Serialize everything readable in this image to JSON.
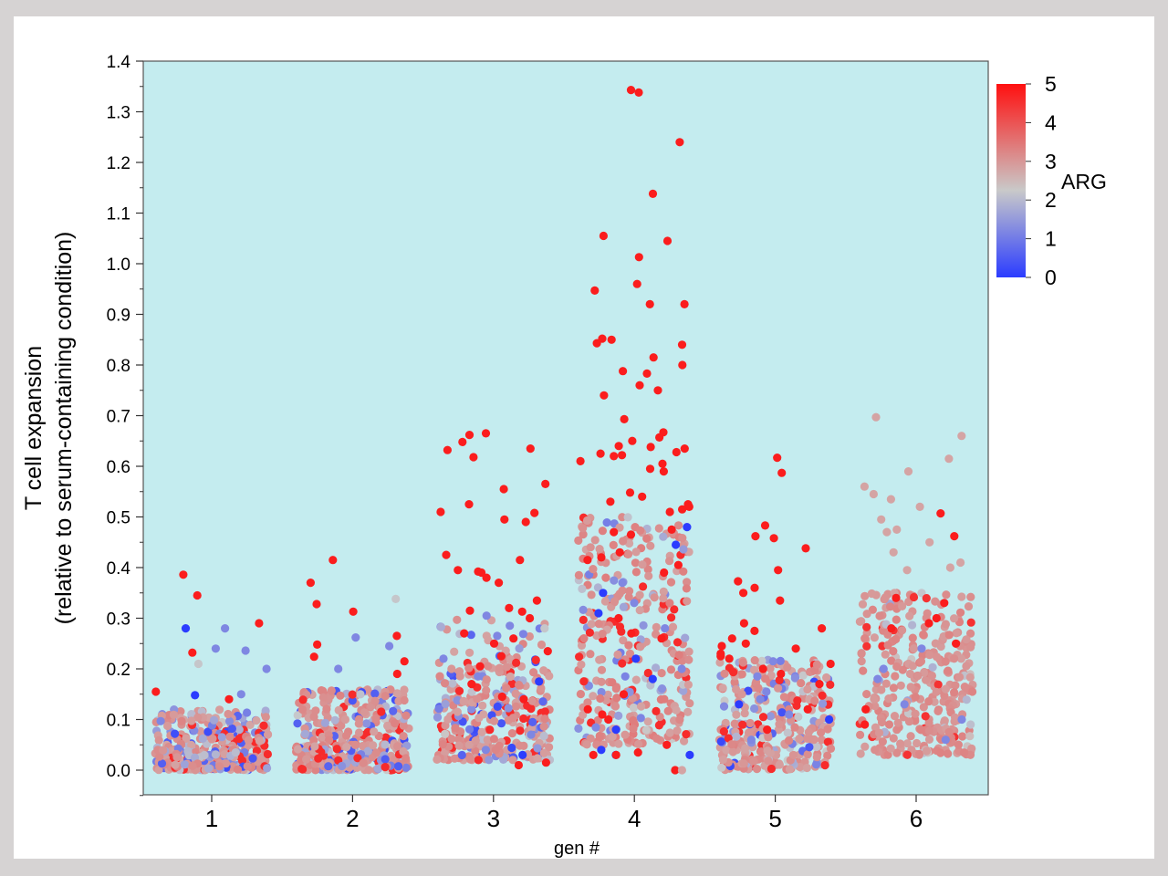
{
  "chart_data": {
    "type": "scatter",
    "title": "",
    "xlabel": "gen #",
    "ylabel_line1": "T cell expansion",
    "ylabel_line2": "(relative to serum-containing condition)",
    "categories": [
      "1",
      "2",
      "3",
      "4",
      "5",
      "6"
    ],
    "ylim": [
      -0.05,
      1.4
    ],
    "yticks": [
      "0.0",
      "0.1",
      "0.2",
      "0.3",
      "0.4",
      "0.5",
      "0.6",
      "0.7",
      "0.8",
      "0.9",
      "1.0",
      "1.1",
      "1.2",
      "1.3",
      "1.4"
    ],
    "jitter": "horizontal jitter within each generation category",
    "plot_background": "#c4ecef",
    "grid": false,
    "legend": "colorbar, right",
    "colorbar": {
      "label": "ARG",
      "min": 0,
      "max": 5,
      "ticks": [
        "0",
        "1",
        "2",
        "3",
        "4",
        "5"
      ],
      "colors": {
        "low": "#2b3cff",
        "mid": "#c9c9c9",
        "high": "#ff1010"
      }
    },
    "groups": [
      {
        "gen": 1,
        "notable_points": [
          [
            0.386,
            4
          ],
          [
            0.345,
            4
          ],
          [
            0.29,
            4
          ],
          [
            0.28,
            0
          ],
          [
            0.28,
            1
          ],
          [
            0.24,
            1
          ],
          [
            0.232,
            4
          ],
          [
            0.236,
            1
          ],
          [
            0.21,
            2
          ],
          [
            0.2,
            1
          ],
          [
            0.155,
            4
          ],
          [
            0.15,
            1
          ],
          [
            0.148,
            0
          ],
          [
            0.14,
            4
          ]
        ],
        "cluster": [
          {
            "y_min": 0.0,
            "y_max": 0.12,
            "count": 260
          },
          {
            "y_min": 0.0,
            "y_max": 0.04,
            "count": 120
          }
        ]
      },
      {
        "gen": 2,
        "notable_points": [
          [
            0.415,
            4
          ],
          [
            0.37,
            4
          ],
          [
            0.338,
            2
          ],
          [
            0.328,
            4
          ],
          [
            0.313,
            4
          ],
          [
            0.265,
            4
          ],
          [
            0.262,
            1
          ],
          [
            0.248,
            4
          ],
          [
            0.245,
            1
          ],
          [
            0.224,
            4
          ],
          [
            0.215,
            4
          ],
          [
            0.2,
            1
          ],
          [
            0.19,
            4
          ]
        ],
        "cluster": [
          {
            "y_min": 0.0,
            "y_max": 0.16,
            "count": 300
          },
          {
            "y_min": 0.0,
            "y_max": 0.05,
            "count": 120
          }
        ]
      },
      {
        "gen": 3,
        "notable_points": [
          [
            0.665,
            4
          ],
          [
            0.662,
            4
          ],
          [
            0.648,
            4
          ],
          [
            0.635,
            4
          ],
          [
            0.632,
            4
          ],
          [
            0.618,
            4
          ],
          [
            0.565,
            4
          ],
          [
            0.555,
            4
          ],
          [
            0.525,
            4
          ],
          [
            0.51,
            4
          ],
          [
            0.508,
            4
          ],
          [
            0.495,
            4
          ],
          [
            0.49,
            4
          ],
          [
            0.425,
            4
          ],
          [
            0.415,
            4
          ],
          [
            0.395,
            4
          ],
          [
            0.392,
            4
          ],
          [
            0.39,
            4
          ],
          [
            0.38,
            4
          ],
          [
            0.37,
            4
          ],
          [
            0.335,
            4
          ],
          [
            0.32,
            4
          ],
          [
            0.315,
            4
          ],
          [
            0.313,
            4
          ],
          [
            0.305,
            1
          ],
          [
            0.3,
            4
          ],
          [
            0.285,
            1
          ],
          [
            0.28,
            2
          ],
          [
            0.27,
            4
          ],
          [
            0.265,
            1
          ],
          [
            0.26,
            4
          ],
          [
            0.25,
            4
          ],
          [
            0.235,
            4
          ],
          [
            0.225,
            4
          ],
          [
            0.22,
            1
          ],
          [
            0.205,
            4
          ],
          [
            0.185,
            1
          ],
          [
            0.175,
            0
          ],
          [
            0.17,
            4
          ],
          [
            0.145,
            4
          ],
          [
            0.14,
            4
          ],
          [
            0.07,
            1
          ],
          [
            0.04,
            1
          ],
          [
            0.03,
            0
          ],
          [
            0.015,
            4
          ],
          [
            0.01,
            4
          ]
        ],
        "cluster": [
          {
            "y_min": 0.02,
            "y_max": 0.2,
            "count": 300
          },
          {
            "y_min": 0.2,
            "y_max": 0.3,
            "count": 40
          }
        ]
      },
      {
        "gen": 4,
        "notable_points": [
          [
            1.343,
            4
          ],
          [
            1.338,
            4
          ],
          [
            1.24,
            4
          ],
          [
            1.138,
            4
          ],
          [
            1.055,
            4
          ],
          [
            1.045,
            4
          ],
          [
            1.013,
            4
          ],
          [
            0.96,
            4
          ],
          [
            0.947,
            4
          ],
          [
            0.92,
            4
          ],
          [
            0.92,
            4
          ],
          [
            0.852,
            4
          ],
          [
            0.85,
            4
          ],
          [
            0.843,
            4
          ],
          [
            0.84,
            4
          ],
          [
            0.815,
            4
          ],
          [
            0.8,
            4
          ],
          [
            0.788,
            4
          ],
          [
            0.783,
            4
          ],
          [
            0.76,
            4
          ],
          [
            0.75,
            4
          ],
          [
            0.74,
            4
          ],
          [
            0.693,
            4
          ],
          [
            0.667,
            4
          ],
          [
            0.657,
            4
          ],
          [
            0.65,
            4
          ],
          [
            0.64,
            4
          ],
          [
            0.638,
            4
          ],
          [
            0.635,
            4
          ],
          [
            0.628,
            4
          ],
          [
            0.625,
            4
          ],
          [
            0.622,
            4
          ],
          [
            0.62,
            4
          ],
          [
            0.61,
            4
          ],
          [
            0.605,
            4
          ],
          [
            0.595,
            4
          ],
          [
            0.59,
            4
          ],
          [
            0.548,
            4
          ],
          [
            0.54,
            4
          ],
          [
            0.53,
            4
          ],
          [
            0.525,
            4
          ],
          [
            0.52,
            4
          ],
          [
            0.515,
            4
          ],
          [
            0.51,
            4
          ],
          [
            0.48,
            0
          ],
          [
            0.475,
            4
          ],
          [
            0.47,
            4
          ],
          [
            0.465,
            4
          ],
          [
            0.445,
            0
          ],
          [
            0.43,
            4
          ],
          [
            0.42,
            4
          ],
          [
            0.415,
            4
          ],
          [
            0.405,
            4
          ],
          [
            0.39,
            4
          ],
          [
            0.37,
            1
          ],
          [
            0.35,
            0
          ],
          [
            0.33,
            1
          ],
          [
            0.31,
            0
          ],
          [
            0.3,
            4
          ],
          [
            0.28,
            1
          ],
          [
            0.27,
            4
          ],
          [
            0.26,
            4
          ],
          [
            0.22,
            0
          ],
          [
            0.2,
            1
          ],
          [
            0.18,
            0
          ],
          [
            0.15,
            4
          ],
          [
            0.12,
            4
          ],
          [
            0.11,
            4
          ],
          [
            0.1,
            4
          ],
          [
            0.08,
            0
          ],
          [
            0.05,
            4
          ],
          [
            0.04,
            0
          ],
          [
            0.035,
            4
          ],
          [
            0.03,
            0
          ],
          [
            0.03,
            4
          ],
          [
            0.03,
            0
          ],
          [
            0.03,
            4
          ],
          [
            0.0,
            4
          ],
          [
            0.0,
            3
          ]
        ],
        "cluster": [
          {
            "y_min": 0.05,
            "y_max": 0.5,
            "count": 330
          }
        ]
      },
      {
        "gen": 5,
        "notable_points": [
          [
            0.617,
            4
          ],
          [
            0.587,
            4
          ],
          [
            0.483,
            4
          ],
          [
            0.462,
            4
          ],
          [
            0.458,
            4
          ],
          [
            0.438,
            4
          ],
          [
            0.395,
            4
          ],
          [
            0.373,
            4
          ],
          [
            0.36,
            4
          ],
          [
            0.35,
            4
          ],
          [
            0.335,
            4
          ],
          [
            0.29,
            4
          ],
          [
            0.28,
            4
          ],
          [
            0.275,
            4
          ],
          [
            0.26,
            4
          ],
          [
            0.25,
            4
          ],
          [
            0.245,
            4
          ],
          [
            0.24,
            4
          ],
          [
            0.23,
            4
          ],
          [
            0.225,
            4
          ],
          [
            0.22,
            4
          ],
          [
            0.215,
            1
          ],
          [
            0.21,
            4
          ],
          [
            0.2,
            4
          ],
          [
            0.19,
            4
          ],
          [
            0.185,
            1
          ],
          [
            0.17,
            4
          ],
          [
            0.155,
            1
          ],
          [
            0.14,
            1
          ],
          [
            0.13,
            0
          ],
          [
            0.12,
            4
          ],
          [
            0.11,
            1
          ],
          [
            0.1,
            0
          ],
          [
            0.08,
            4
          ],
          [
            0.06,
            1
          ]
        ],
        "cluster": [
          {
            "y_min": 0.0,
            "y_max": 0.22,
            "count": 320
          }
        ]
      },
      {
        "gen": 6,
        "notable_points": [
          [
            0.697,
            3
          ],
          [
            0.66,
            3
          ],
          [
            0.615,
            3
          ],
          [
            0.59,
            3
          ],
          [
            0.56,
            3
          ],
          [
            0.545,
            3
          ],
          [
            0.535,
            3
          ],
          [
            0.52,
            3
          ],
          [
            0.507,
            4
          ],
          [
            0.495,
            3
          ],
          [
            0.475,
            3
          ],
          [
            0.47,
            3
          ],
          [
            0.462,
            4
          ],
          [
            0.45,
            3
          ],
          [
            0.43,
            3
          ],
          [
            0.41,
            3
          ],
          [
            0.4,
            3
          ],
          [
            0.395,
            3
          ],
          [
            0.35,
            3
          ],
          [
            0.34,
            4
          ],
          [
            0.33,
            4
          ],
          [
            0.3,
            4
          ],
          [
            0.29,
            4
          ],
          [
            0.28,
            4
          ],
          [
            0.25,
            4
          ],
          [
            0.24,
            1
          ],
          [
            0.2,
            1
          ],
          [
            0.18,
            1
          ],
          [
            0.13,
            1
          ],
          [
            0.12,
            4
          ],
          [
            0.1,
            1
          ],
          [
            0.09,
            4
          ],
          [
            0.06,
            1
          ]
        ],
        "cluster": [
          {
            "y_min": 0.03,
            "y_max": 0.35,
            "count": 330
          }
        ]
      }
    ]
  }
}
